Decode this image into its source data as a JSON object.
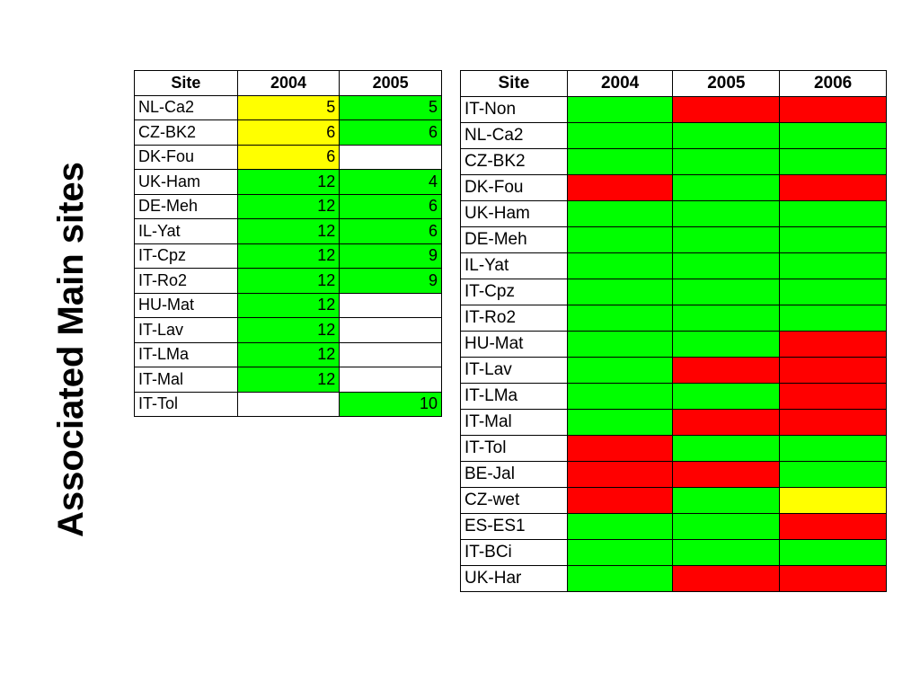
{
  "title": "Associated Main sites",
  "colors": {
    "green": "#00ff00",
    "yellow": "#ffff00",
    "red": "#ff0000",
    "white": "#ffffff"
  },
  "table_left": {
    "headers": [
      "Site",
      "2004",
      "2005"
    ],
    "rows": [
      {
        "site": "NL-Ca2",
        "cells": [
          {
            "value": "5",
            "color": "yellow"
          },
          {
            "value": "5",
            "color": "green"
          }
        ]
      },
      {
        "site": "CZ-BK2",
        "cells": [
          {
            "value": "6",
            "color": "yellow"
          },
          {
            "value": "6",
            "color": "green"
          }
        ]
      },
      {
        "site": "DK-Fou",
        "cells": [
          {
            "value": "6",
            "color": "yellow"
          },
          {
            "value": "",
            "color": "white"
          }
        ]
      },
      {
        "site": "UK-Ham",
        "cells": [
          {
            "value": "12",
            "color": "green"
          },
          {
            "value": "4",
            "color": "green"
          }
        ]
      },
      {
        "site": "DE-Meh",
        "cells": [
          {
            "value": "12",
            "color": "green"
          },
          {
            "value": "6",
            "color": "green"
          }
        ]
      },
      {
        "site": "IL-Yat",
        "cells": [
          {
            "value": "12",
            "color": "green"
          },
          {
            "value": "6",
            "color": "green"
          }
        ]
      },
      {
        "site": "IT-Cpz",
        "cells": [
          {
            "value": "12",
            "color": "green"
          },
          {
            "value": "9",
            "color": "green"
          }
        ]
      },
      {
        "site": "IT-Ro2",
        "cells": [
          {
            "value": "12",
            "color": "green"
          },
          {
            "value": "9",
            "color": "green"
          }
        ]
      },
      {
        "site": "HU-Mat",
        "cells": [
          {
            "value": "12",
            "color": "green"
          },
          {
            "value": "",
            "color": "white"
          }
        ]
      },
      {
        "site": "IT-Lav",
        "cells": [
          {
            "value": "12",
            "color": "green"
          },
          {
            "value": "",
            "color": "white"
          }
        ]
      },
      {
        "site": "IT-LMa",
        "cells": [
          {
            "value": "12",
            "color": "green"
          },
          {
            "value": "",
            "color": "white"
          }
        ]
      },
      {
        "site": "IT-Mal",
        "cells": [
          {
            "value": "12",
            "color": "green"
          },
          {
            "value": "",
            "color": "white"
          }
        ]
      },
      {
        "site": "IT-Tol",
        "cells": [
          {
            "value": "",
            "color": "white"
          },
          {
            "value": "10",
            "color": "green"
          }
        ]
      }
    ]
  },
  "table_right": {
    "headers": [
      "Site",
      "2004",
      "2005",
      "2006"
    ],
    "rows": [
      {
        "site": "IT-Non",
        "cells": [
          "green",
          "red",
          "red"
        ]
      },
      {
        "site": "NL-Ca2",
        "cells": [
          "green",
          "green",
          "green"
        ]
      },
      {
        "site": "CZ-BK2",
        "cells": [
          "green",
          "green",
          "green"
        ]
      },
      {
        "site": "DK-Fou",
        "cells": [
          "red",
          "green",
          "red"
        ]
      },
      {
        "site": "UK-Ham",
        "cells": [
          "green",
          "green",
          "green"
        ]
      },
      {
        "site": "DE-Meh",
        "cells": [
          "green",
          "green",
          "green"
        ]
      },
      {
        "site": "IL-Yat",
        "cells": [
          "green",
          "green",
          "green"
        ]
      },
      {
        "site": "IT-Cpz",
        "cells": [
          "green",
          "green",
          "green"
        ]
      },
      {
        "site": "IT-Ro2",
        "cells": [
          "green",
          "green",
          "green"
        ]
      },
      {
        "site": "HU-Mat",
        "cells": [
          "green",
          "green",
          "red"
        ]
      },
      {
        "site": "IT-Lav",
        "cells": [
          "green",
          "red",
          "red"
        ]
      },
      {
        "site": "IT-LMa",
        "cells": [
          "green",
          "green",
          "red"
        ]
      },
      {
        "site": "IT-Mal",
        "cells": [
          "green",
          "red",
          "red"
        ]
      },
      {
        "site": "IT-Tol",
        "cells": [
          "red",
          "green",
          "green"
        ]
      },
      {
        "site": "BE-Jal",
        "cells": [
          "red",
          "red",
          "green"
        ]
      },
      {
        "site": "CZ-wet",
        "cells": [
          "red",
          "green",
          "yellow"
        ]
      },
      {
        "site": "ES-ES1",
        "cells": [
          "green",
          "green",
          "red"
        ]
      },
      {
        "site": "IT-BCi",
        "cells": [
          "green",
          "green",
          "green"
        ]
      },
      {
        "site": "UK-Har",
        "cells": [
          "green",
          "red",
          "red"
        ]
      }
    ]
  }
}
